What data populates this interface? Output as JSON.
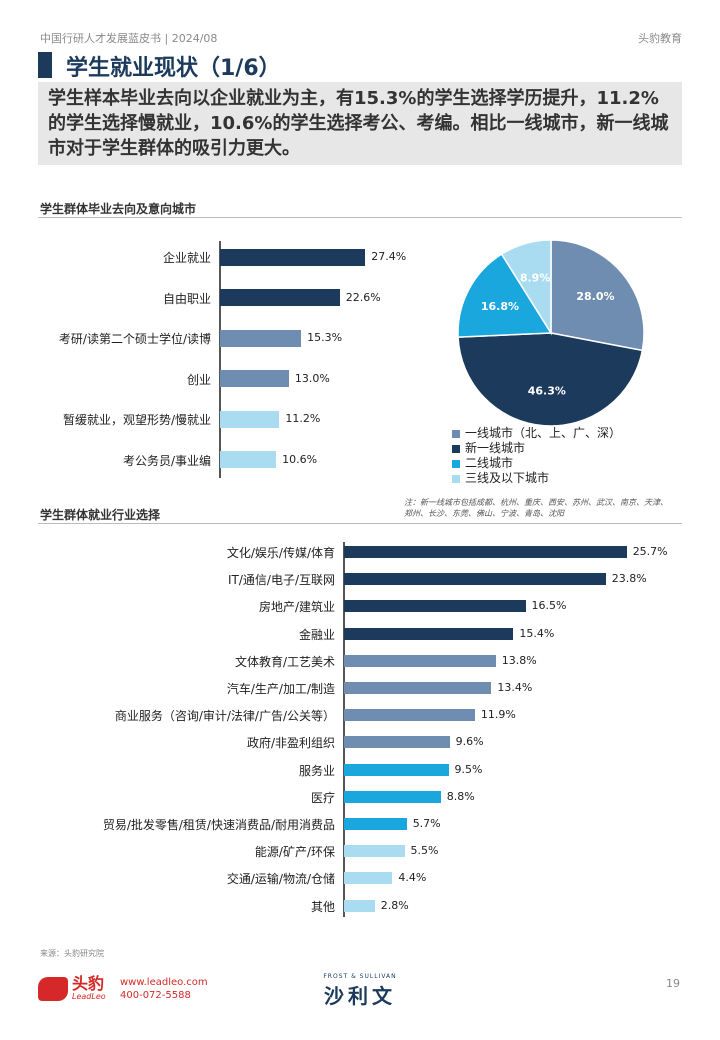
{
  "header": {
    "meta": "中国行研人才发展蓝皮书 | 2024/08",
    "brand": "头豹教育"
  },
  "title": "学生就业现状（1/6）",
  "summary": "学生样本毕业去向以企业就业为主，有15.3%的学生选择学历提升，11.2%的学生选择慢就业，10.6%的学生选择考公、考编。相比一线城市，新一线城市对于学生群体的吸引力更大。",
  "colors": {
    "navy": "#1b3a5c",
    "slate": "#6e8db0",
    "cyan": "#1aa7de",
    "lightblue": "#a9dcf0"
  },
  "chart_data": [
    {
      "type": "bar",
      "title": "学生群体毕业去向及意向城市",
      "categories": [
        "企业就业",
        "自由职业",
        "考研/读第二个硕士学位/读博",
        "创业",
        "暂缓就业，观望形势/慢就业",
        "考公务员/事业编"
      ],
      "values": [
        27.4,
        22.6,
        15.3,
        13.0,
        11.2,
        10.6
      ],
      "value_labels": [
        "27.4%",
        "22.6%",
        "15.3%",
        "13.0%",
        "11.2%",
        "10.6%"
      ],
      "bar_colors": [
        "navy",
        "navy",
        "slate",
        "slate",
        "lightblue",
        "lightblue"
      ],
      "orientation": "horizontal"
    },
    {
      "type": "pie",
      "labels": [
        "一线城市（北、上、广、深）",
        "新一线城市",
        "二线城市",
        "三线及以下城市"
      ],
      "values": [
        28.0,
        46.3,
        16.8,
        8.9
      ],
      "value_labels": [
        "28.0%",
        "46.3%",
        "16.8%",
        "8.9%"
      ],
      "slice_colors": [
        "slate",
        "navy",
        "cyan",
        "lightblue"
      ],
      "legend": "bottom",
      "note": "注：新一线城市包括成都、杭州、重庆、西安、苏州、武汉、南京、天津、郑州、长沙、东莞、佛山、宁波、青岛、沈阳"
    },
    {
      "type": "bar",
      "title": "学生群体就业行业选择",
      "categories": [
        "文化/娱乐/传媒/体育",
        "IT/通信/电子/互联网",
        "房地产/建筑业",
        "金融业",
        "文体教育/工艺美术",
        "汽车/生产/加工/制造",
        "商业服务（咨询/审计/法律/广告/公关等）",
        "政府/非盈利组织",
        "服务业",
        "医疗",
        "贸易/批发零售/租赁/快速消费品/耐用消费品",
        "能源/矿产/环保",
        "交通/运输/物流/仓储",
        "其他"
      ],
      "values": [
        25.7,
        23.8,
        16.5,
        15.4,
        13.8,
        13.4,
        11.9,
        9.6,
        9.5,
        8.8,
        5.7,
        5.5,
        4.4,
        2.8
      ],
      "value_labels": [
        "25.7%",
        "23.8%",
        "16.5%",
        "15.4%",
        "13.8%",
        "13.4%",
        "11.9%",
        "9.6%",
        "9.5%",
        "8.8%",
        "5.7%",
        "5.5%",
        "4.4%",
        "2.8%"
      ],
      "bar_colors": [
        "navy",
        "navy",
        "navy",
        "navy",
        "slate",
        "slate",
        "slate",
        "slate",
        "cyan",
        "cyan",
        "cyan",
        "lightblue",
        "lightblue",
        "lightblue"
      ],
      "orientation": "horizontal"
    }
  ],
  "footer": {
    "source": "来源：头豹研究院",
    "logo_cn": "头豹",
    "logo_en": "LeadLeo",
    "website": "www.leadleo.com",
    "phone": "400-072-5588",
    "partner_en": "FROST & SULLIVAN",
    "partner_cn": "沙利文",
    "page": "19"
  }
}
